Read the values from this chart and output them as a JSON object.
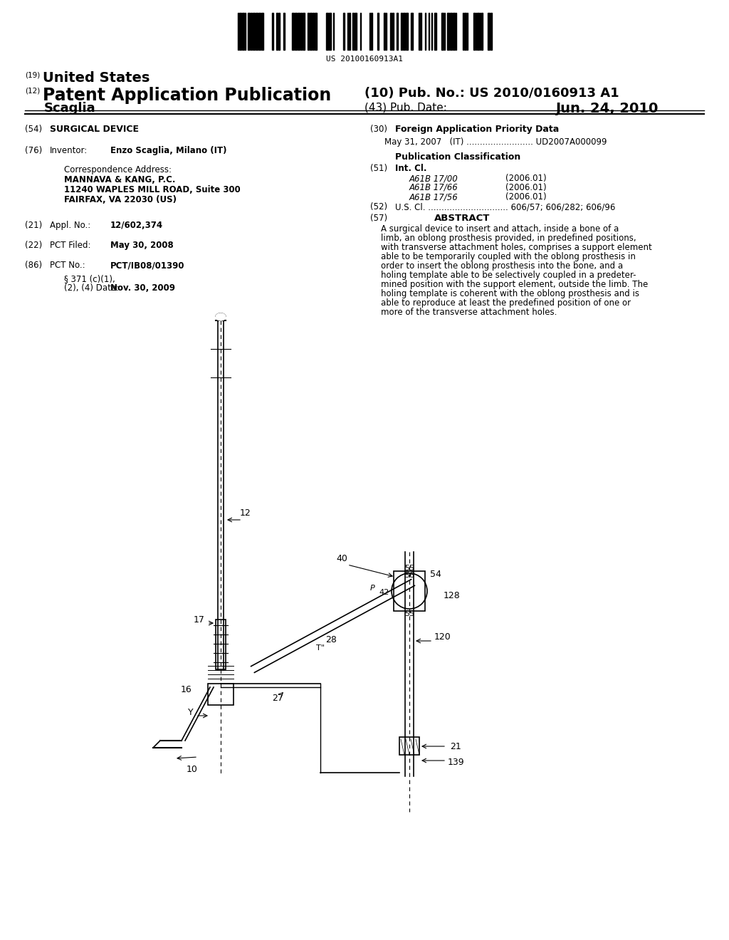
{
  "background_color": "#ffffff",
  "barcode_text": "US 20100160913A1",
  "header_19": "(19)",
  "header_19_text": "United States",
  "header_12": "(12)",
  "header_12_text": "Patent Application Publication",
  "header_10": "(10) Pub. No.: US 2010/0160913 A1",
  "header_inventor_name": "Scaglia",
  "header_43": "(43) Pub. Date:",
  "header_date": "Jun. 24, 2010",
  "field_54_label": "(54)",
  "field_54_text": "SURGICAL DEVICE",
  "field_76_label": "(76)",
  "field_76_key": "Inventor:",
  "field_76_val": "Enzo Scaglia, Milano (IT)",
  "corr_label": "Correspondence Address:",
  "corr_line1": "MANNAVA & KANG, P.C.",
  "corr_line2": "11240 WAPLES MILL ROAD, Suite 300",
  "corr_line3": "FAIRFAX, VA 22030 (US)",
  "field_21_label": "(21)",
  "field_21_key": "Appl. No.:",
  "field_21_val": "12/602,374",
  "field_22_label": "(22)",
  "field_22_key": "PCT Filed:",
  "field_22_val": "May 30, 2008",
  "field_86_label": "(86)",
  "field_86_key": "PCT No.:",
  "field_86_val": "PCT/IB08/01390",
  "field_371_line1": "§ 371 (c)(1),",
  "field_371_line2": "(2), (4) Date:",
  "field_371_val": "Nov. 30, 2009",
  "field_30_label": "(30)",
  "field_30_title": "Foreign Application Priority Data",
  "field_30_entry": "May 31, 2007   (IT) ......................... UD2007A000099",
  "pub_class_title": "Publication Classification",
  "field_51_label": "(51)",
  "field_51_key": "Int. Cl.",
  "field_51_entries": [
    [
      "A61B 17/00",
      "(2006.01)"
    ],
    [
      "A61B 17/66",
      "(2006.01)"
    ],
    [
      "A61B 17/56",
      "(2006.01)"
    ]
  ],
  "field_52_label": "(52)",
  "field_52_text": "U.S. Cl. .............................. 606/57; 606/282; 606/96",
  "field_57_label": "(57)",
  "field_57_title": "ABSTRACT",
  "abstract_text": "A surgical device to insert and attach, inside a bone of a limb, an oblong prosthesis provided, in predefined positions, with transverse attachment holes, comprises a support element able to be temporarily coupled with the oblong prosthesis in order to insert the oblong prosthesis into the bone, and a holing template able to be selectively coupled in a predeter-mined position with the support element, outside the limb. The holing template is coherent with the oblong prosthesis and is able to reproduce at least the predefined position of one or more of the transverse attachment holes."
}
